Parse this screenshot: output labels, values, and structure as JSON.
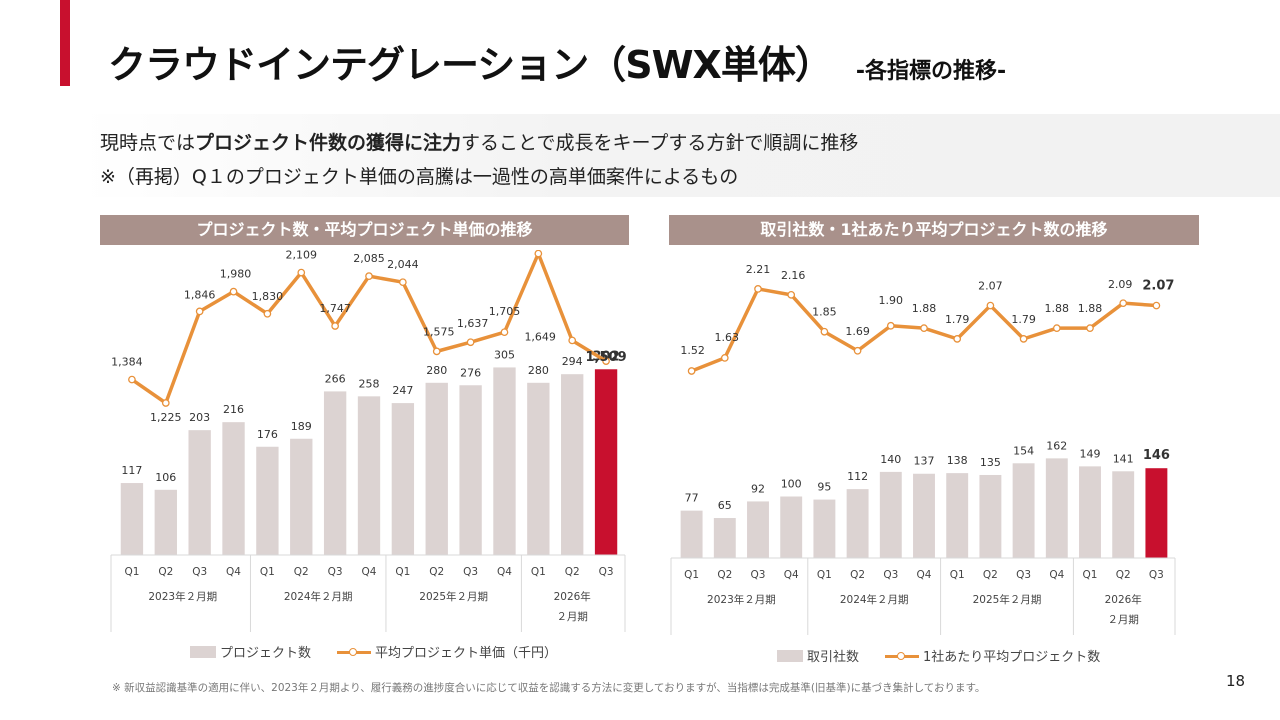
{
  "header": {
    "title": "クラウドインテグレーション（SWX単体）",
    "subtitle": "-各指標の推移-"
  },
  "message": {
    "line1_pre": "現時点では",
    "line1_bold": "プロジェクト件数の獲得に注力",
    "line1_post": "することで成長をキープする方針で順調に推移",
    "line2": "※（再掲）Q１のプロジェクト単価の高騰は一過性の高単価案件によるもの"
  },
  "footnote": "※ 新収益認識基準の適用に伴い、2023年２月期より、履行義務の進捗度合いに応じて収益を認識する方法に変更しておりますが、当指標は完成基準(旧基準)に基づき集計しております。",
  "page_number": "18",
  "colors": {
    "bar": "#dcd3d2",
    "bar_highlight": "#c8102e",
    "line": "#e8913a",
    "header_bg": "#a9918b",
    "accent": "#c8102e"
  },
  "chart_data": [
    {
      "type": "bar+line",
      "title": "プロジェクト数・平均プロジェクト単価の推移",
      "categories": [
        "Q1",
        "Q2",
        "Q3",
        "Q4",
        "Q1",
        "Q2",
        "Q3",
        "Q4",
        "Q1",
        "Q2",
        "Q3",
        "Q4",
        "Q1",
        "Q2",
        "Q3"
      ],
      "groups": [
        {
          "label": "2023年２月期",
          "count": 4
        },
        {
          "label": "2024年２月期",
          "count": 4
        },
        {
          "label": "2025年２月期",
          "count": 4
        },
        {
          "label_lines": [
            "2026年",
            "２月期"
          ],
          "count": 3
        }
      ],
      "series": [
        {
          "name": "プロジェクト数",
          "kind": "bar",
          "values": [
            117,
            106,
            203,
            216,
            176,
            189,
            266,
            258,
            247,
            280,
            276,
            305,
            280,
            294,
            302
          ],
          "labels": [
            "117",
            "106",
            "203",
            "216",
            "176",
            "189",
            "266",
            "258",
            "247",
            "280",
            "276",
            "305",
            "280",
            "294",
            "302"
          ]
        },
        {
          "name": "平均プロジェクト単価（千円）",
          "kind": "line",
          "values": [
            1384,
            1225,
            1846,
            1980,
            1830,
            2109,
            1747,
            2085,
            2044,
            1575,
            1637,
            1705,
            2238,
            1649,
            1509
          ],
          "labels": [
            "1,384",
            "1,225",
            "1,846",
            "1,980",
            "1,830",
            "2,109",
            "1,747",
            "2,085",
            "2,044",
            "1,575",
            "1,637",
            "1,705",
            "2,238",
            "1,649",
            "1,509"
          ]
        }
      ],
      "highlight_index": 14,
      "legend": [
        "プロジェクト数",
        "平均プロジェクト単価（千円）"
      ],
      "legend_position": "bottom",
      "grid": false
    },
    {
      "type": "bar+line",
      "title": "取引社数・1社あたり平均プロジェクト数の推移",
      "categories": [
        "Q1",
        "Q2",
        "Q3",
        "Q4",
        "Q1",
        "Q2",
        "Q3",
        "Q4",
        "Q1",
        "Q2",
        "Q3",
        "Q4",
        "Q1",
        "Q2",
        "Q3"
      ],
      "groups": [
        {
          "label": "2023年２月期",
          "count": 4
        },
        {
          "label": "2024年２月期",
          "count": 4
        },
        {
          "label": "2025年２月期",
          "count": 4
        },
        {
          "label_lines": [
            "2026年",
            "２月期"
          ],
          "count": 3
        }
      ],
      "series": [
        {
          "name": "取引社数",
          "kind": "bar",
          "values": [
            77,
            65,
            92,
            100,
            95,
            112,
            140,
            137,
            138,
            135,
            154,
            162,
            149,
            141,
            146
          ],
          "labels": [
            "77",
            "65",
            "92",
            "100",
            "95",
            "112",
            "140",
            "137",
            "138",
            "135",
            "154",
            "162",
            "149",
            "141",
            "146"
          ]
        },
        {
          "name": "1社あたり平均プロジェクト数",
          "kind": "line",
          "values": [
            1.52,
            1.63,
            2.21,
            2.16,
            1.85,
            1.69,
            1.9,
            1.88,
            1.79,
            2.07,
            1.79,
            1.88,
            1.88,
            2.09,
            2.07
          ],
          "labels": [
            "1.52",
            "1.63",
            "2.21",
            "2.16",
            "1.85",
            "1.69",
            "1.90",
            "1.88",
            "1.79",
            "2.07",
            "1.79",
            "1.88",
            "1.88",
            "2.09",
            "2.07"
          ]
        }
      ],
      "highlight_index": 14,
      "legend": [
        "取引社数",
        "1社あたり平均プロジェクト数"
      ],
      "legend_position": "bottom",
      "grid": false
    }
  ]
}
